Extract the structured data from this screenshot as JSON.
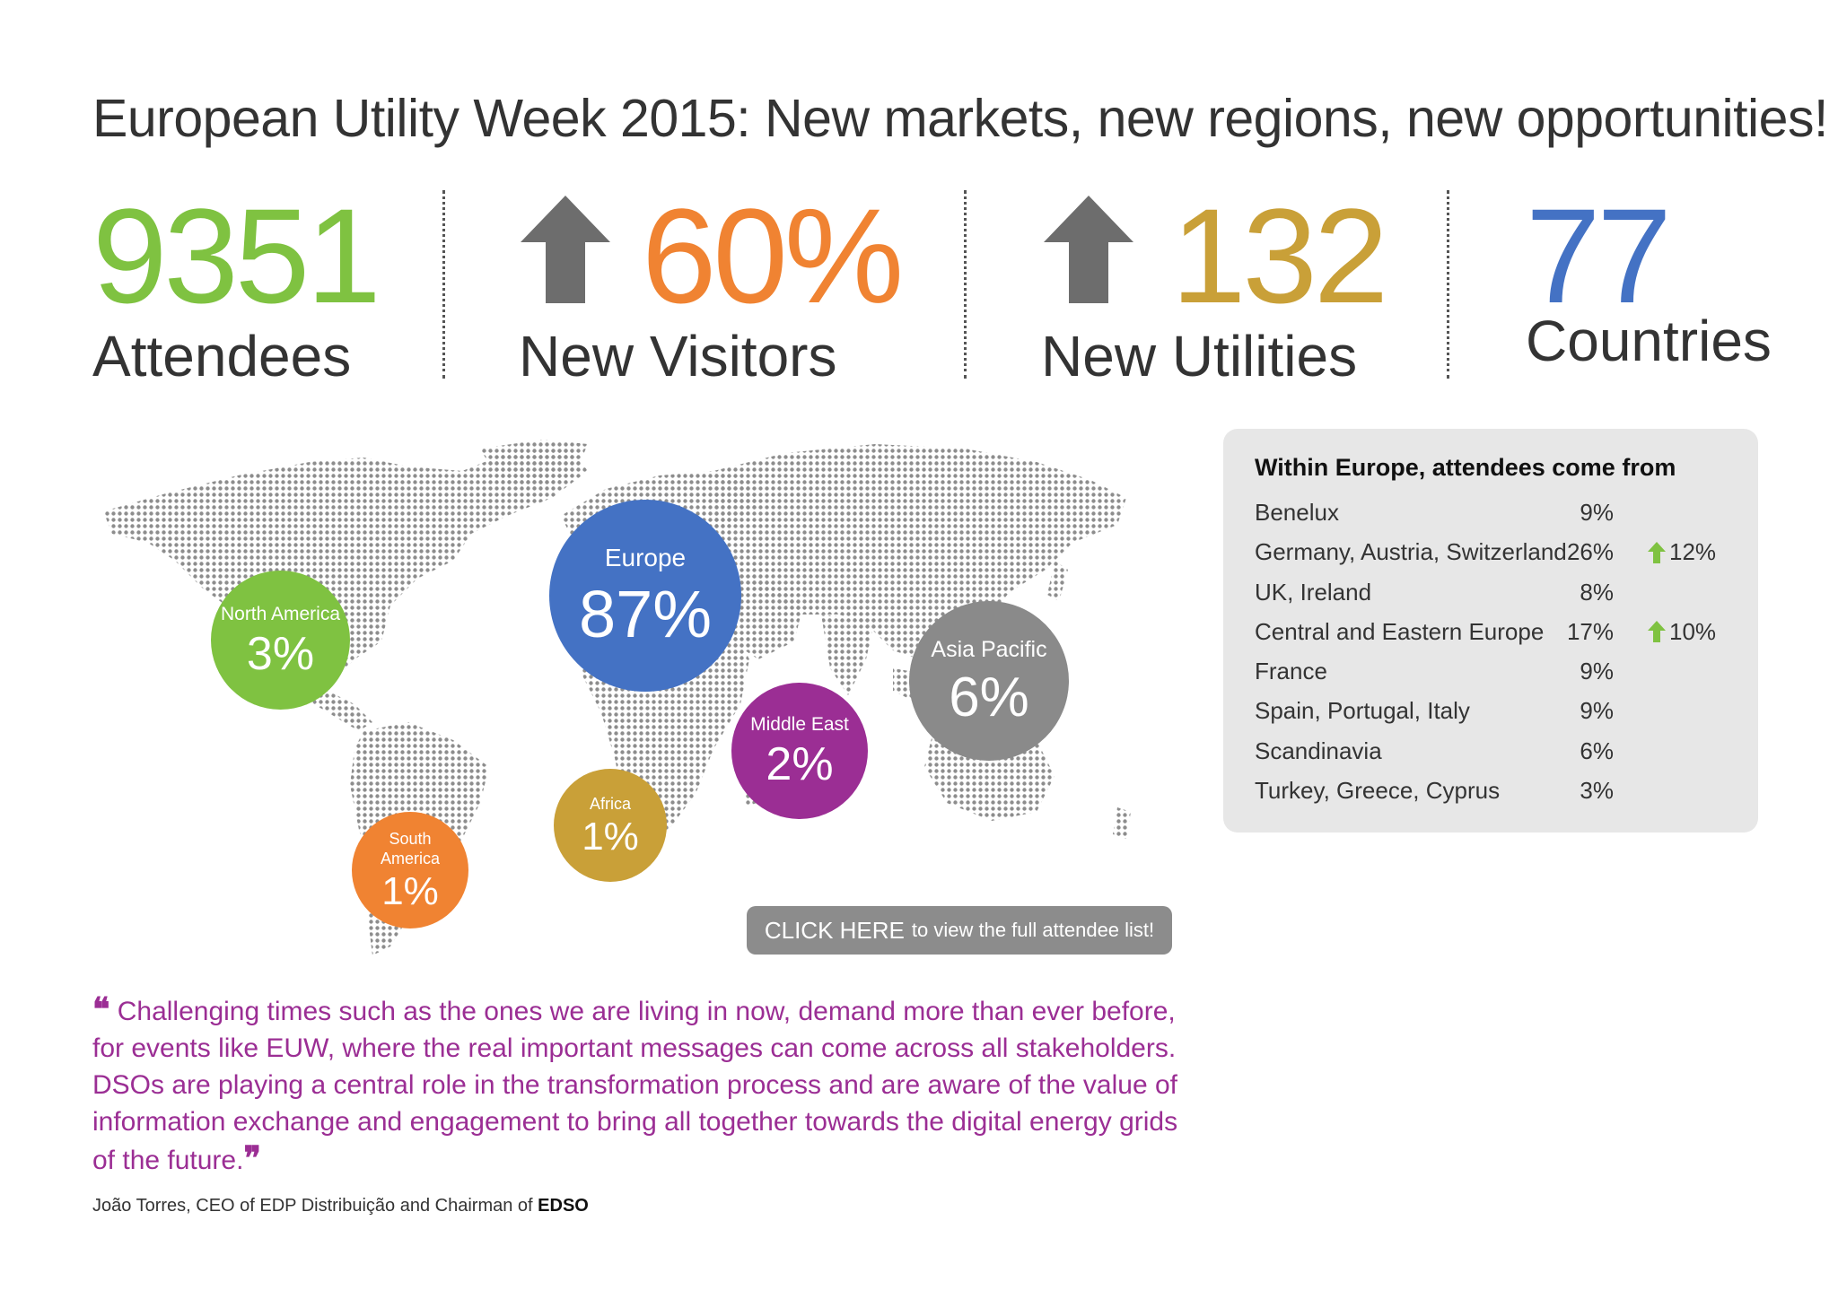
{
  "title": "European Utility Week 2015: New markets, new regions, new opportunities!",
  "stats": {
    "attendees": {
      "value": "9351",
      "label": "Attendees",
      "color": "#7fc241"
    },
    "new_visitors": {
      "value": "60%",
      "label": "New Visitors",
      "color": "#f08332",
      "icon": "arrow-up-icon"
    },
    "new_utilities": {
      "value": "132",
      "label": "New Utilities",
      "color": "#c9a038",
      "icon": "arrow-up-icon"
    },
    "countries": {
      "value": "77",
      "label": "Countries",
      "color": "#4472c4"
    }
  },
  "map": {
    "icon": "world-map-icon",
    "bubbles": [
      {
        "id": "north-america",
        "name": "North America",
        "pct": "3%",
        "color": "#7fc241"
      },
      {
        "id": "europe",
        "name": "Europe",
        "pct": "87%",
        "color": "#4472c4"
      },
      {
        "id": "asia-pacific",
        "name": "Asia Pacific",
        "pct": "6%",
        "color": "#8a8a8a"
      },
      {
        "id": "middle-east",
        "name": "Middle East",
        "pct": "2%",
        "color": "#9b2e94"
      },
      {
        "id": "africa",
        "name": "Africa",
        "pct": "1%",
        "color": "#c9a038"
      },
      {
        "id": "south-america",
        "name": "South\nAmerica",
        "pct": "1%",
        "color": "#f08332"
      }
    ]
  },
  "cta": {
    "strong": "CLICK HERE",
    "rest": "to view the full attendee list!"
  },
  "europe_panel": {
    "title": "Within Europe, attendees come from",
    "growth_color": "#7fc241",
    "rows": [
      {
        "region": "Benelux",
        "pct": "9%",
        "growth": ""
      },
      {
        "region": "Germany, Austria, Switzerland",
        "pct": "26%",
        "growth": "12%"
      },
      {
        "region": "UK, Ireland",
        "pct": "8%",
        "growth": ""
      },
      {
        "region": "Central and Eastern Europe",
        "pct": "17%",
        "growth": "10%"
      },
      {
        "region": "France",
        "pct": "9%",
        "growth": ""
      },
      {
        "region": "Spain, Portugal, Italy",
        "pct": "9%",
        "growth": ""
      },
      {
        "region": "Scandinavia",
        "pct": "6%",
        "growth": ""
      },
      {
        "region": "Turkey, Greece, Cyprus",
        "pct": "3%",
        "growth": ""
      }
    ]
  },
  "quote": {
    "open": "❝",
    "text": "Challenging times such as the ones we are living in now, demand more than ever before, for events like EUW, where the real important messages can come across all stakeholders. DSOs are playing a central role in the transformation process and are aware of the value of information exchange and engagement to bring all together towards the digital energy grids of the future.",
    "close": "❞"
  },
  "attribution": {
    "text": "João Torres, CEO of EDP Distribuição and Chairman of",
    "org": "EDSO"
  }
}
